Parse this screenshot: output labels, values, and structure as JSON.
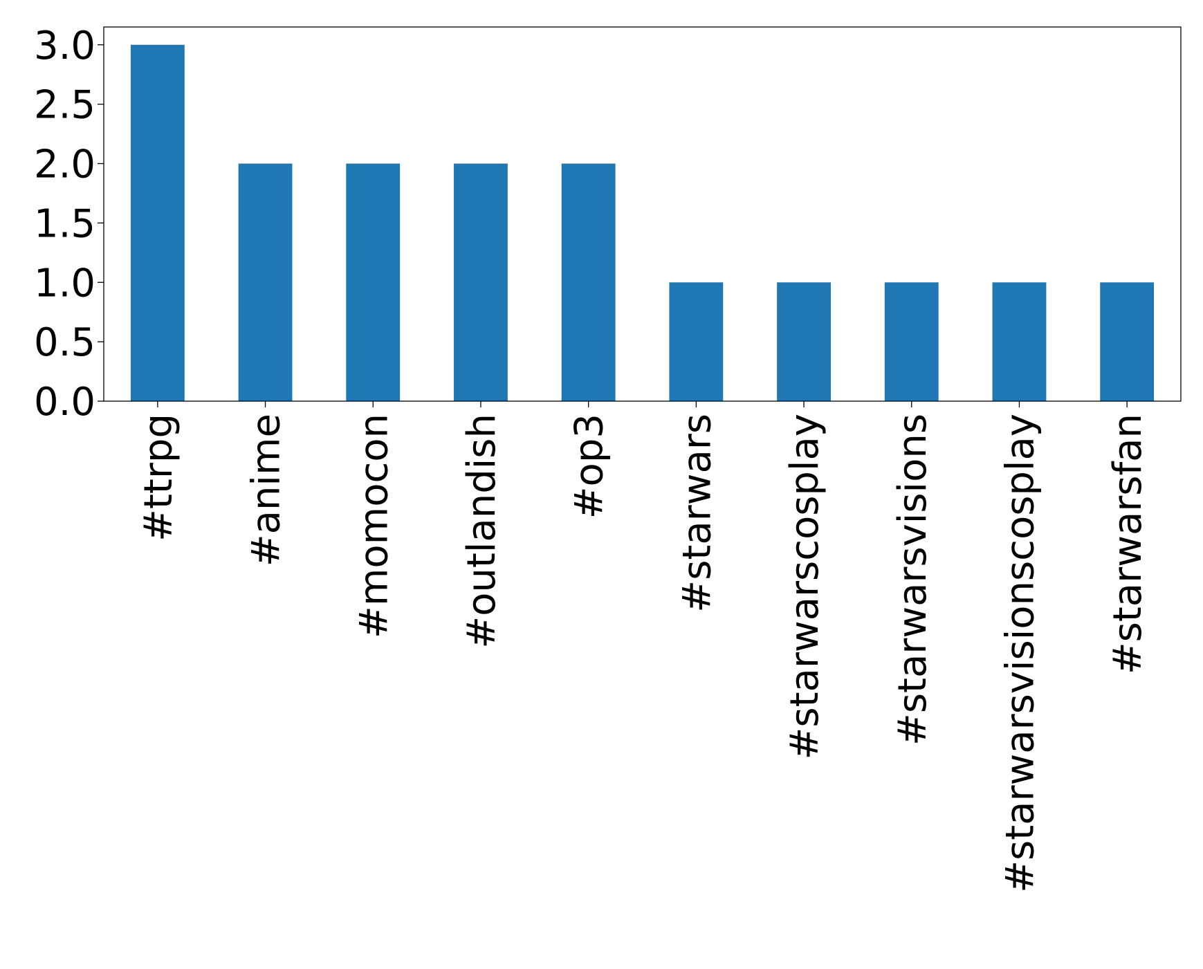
{
  "chart_data": {
    "type": "bar",
    "title": "",
    "xlabel": "",
    "ylabel": "",
    "categories": [
      "#ttrpg",
      "#anime",
      "#momocon",
      "#outlandish",
      "#op3",
      "#starwars",
      "#starwarscosplay",
      "#starwarsvisions",
      "#starwarsvisionscosplay",
      "#starwarsfan"
    ],
    "values": [
      3,
      2,
      2,
      2,
      2,
      1,
      1,
      1,
      1,
      1
    ],
    "ylim": [
      0,
      3.15
    ],
    "yticks": [
      0.0,
      0.5,
      1.0,
      1.5,
      2.0,
      2.5,
      3.0
    ],
    "ytick_labels": [
      "0.0",
      "0.5",
      "1.0",
      "1.5",
      "2.0",
      "2.5",
      "3.0"
    ],
    "grid": false,
    "legend": "none",
    "bar_color": "#1f77b4"
  }
}
